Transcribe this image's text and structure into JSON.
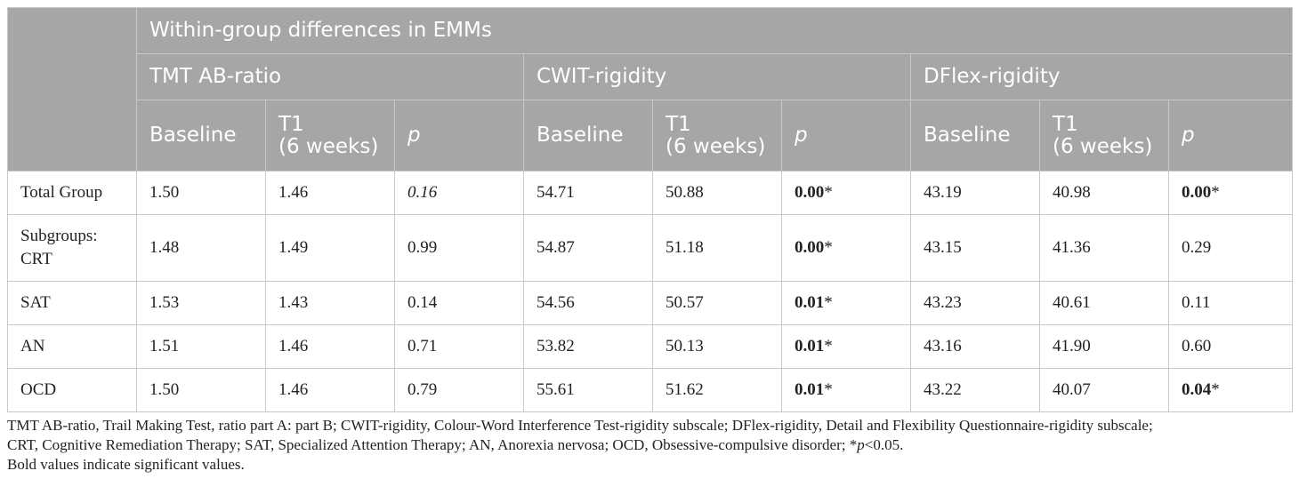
{
  "header": {
    "group_title": "Within-group differences in EMMs",
    "measures": [
      "TMT AB-ratio",
      "CWIT-rigidity",
      "DFlex-rigidity"
    ],
    "baseline_label": "Baseline",
    "t1_label_line1": "T1",
    "t1_label_line2": "(6 weeks)",
    "p_label": "p"
  },
  "rows": [
    {
      "label": "Total Group",
      "label2": "",
      "tmt_base": "1.50",
      "tmt_t1": "1.46",
      "tmt_p": "0.16",
      "cwit_base": "54.71",
      "cwit_t1": "50.88",
      "cwit_p": "0.00",
      "cwit_p_mark": "*",
      "dflex_base": "43.19",
      "dflex_t1": "40.98",
      "dflex_p": "0.00",
      "dflex_p_mark": "*"
    },
    {
      "label": "Subgroups:",
      "label2": "CRT",
      "tmt_base": "1.48",
      "tmt_t1": "1.49",
      "tmt_p": "0.99",
      "cwit_base": "54.87",
      "cwit_t1": "51.18",
      "cwit_p": "0.00",
      "cwit_p_mark": "*",
      "dflex_base": "43.15",
      "dflex_t1": "41.36",
      "dflex_p": "0.29",
      "dflex_p_mark": ""
    },
    {
      "label": "SAT",
      "label2": "",
      "tmt_base": "1.53",
      "tmt_t1": "1.43",
      "tmt_p": "0.14",
      "cwit_base": "54.56",
      "cwit_t1": "50.57",
      "cwit_p": "0.01",
      "cwit_p_mark": "*",
      "dflex_base": "43.23",
      "dflex_t1": "40.61",
      "dflex_p": "0.11",
      "dflex_p_mark": ""
    },
    {
      "label": "AN",
      "label2": "",
      "tmt_base": "1.51",
      "tmt_t1": "1.46",
      "tmt_p": "0.71",
      "cwit_base": "53.82",
      "cwit_t1": "50.13",
      "cwit_p": "0.01",
      "cwit_p_mark": "*",
      "dflex_base": "43.16",
      "dflex_t1": "41.90",
      "dflex_p": "0.60",
      "dflex_p_mark": ""
    },
    {
      "label": "OCD",
      "label2": "",
      "tmt_base": "1.50",
      "tmt_t1": "1.46",
      "tmt_p": "0.79",
      "cwit_base": "55.61",
      "cwit_t1": "51.62",
      "cwit_p": "0.01",
      "cwit_p_mark": "*",
      "dflex_base": "43.22",
      "dflex_t1": "40.07",
      "dflex_p": "0.04",
      "dflex_p_mark": "*"
    }
  ],
  "footnote": {
    "line1": "TMT AB-ratio, Trail Making Test, ratio part A: part B; CWIT-rigidity, Colour-Word Interference Test-rigidity subscale; DFlex-rigidity, Detail and Flexibility Questionnaire-rigidity subscale;",
    "line2_before": "CRT, Cognitive Remediation Therapy; SAT, Specialized Attention Therapy; AN, Anorexia nervosa; OCD, Obsessive-compulsive disorder; *",
    "line2_p": "p",
    "line2_after": "<0.05.",
    "line3": "Bold values indicate significant values."
  }
}
